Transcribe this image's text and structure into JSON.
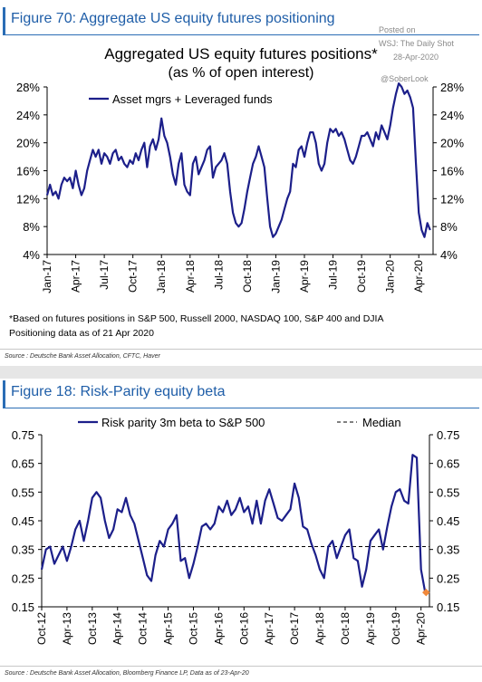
{
  "panel1": {
    "figure_title": "Figure 70: Aggregate US equity futures positioning",
    "watermark": [
      "Posted on",
      "WSJ: The Daily Shot",
      "28-Apr-2020",
      "@SoberLook"
    ],
    "footnote_lines": [
      "*Based on futures positions in S&P 500, Russell 2000, NASDAQ 100, S&P 400 and DJIA",
      "Positioning data as of 21 Apr 2020"
    ],
    "source": "Source : Deutsche Bank Asset Allocation, CFTC, Haver"
  },
  "panel2": {
    "figure_title": "Figure 18: Risk-Parity equity beta",
    "source": "Source : Deutsche Bank Asset Allocation, Bloomberg Finance LP, Data as of 23-Apr-20"
  },
  "colors": {
    "series": "#1c1f8a",
    "median": "#000000",
    "marker": "#f0883a",
    "header": "#1f5ea8"
  },
  "chart_data": [
    {
      "type": "line",
      "title": "Aggregated US equity futures positions*",
      "subtitle": "(as % of open interest)",
      "xlabel": "",
      "ylabel": "",
      "ylim": [
        4,
        28
      ],
      "yticks": [
        4,
        8,
        12,
        16,
        20,
        24,
        28
      ],
      "ytick_labels": [
        "4%",
        "8%",
        "12%",
        "16%",
        "20%",
        "24%",
        "28%"
      ],
      "xlim": [
        0,
        40.5
      ],
      "xticks": [
        0,
        3,
        6,
        9,
        12,
        15,
        18,
        21,
        24,
        27,
        30,
        33,
        36,
        39
      ],
      "xtick_labels": [
        "Jan-17",
        "Apr-17",
        "Jul-17",
        "Oct-17",
        "Jan-18",
        "Apr-18",
        "Jul-18",
        "Oct-18",
        "Jan-19",
        "Apr-19",
        "Jul-19",
        "Oct-19",
        "Jan-20",
        "Apr-20"
      ],
      "legend": "top-left",
      "grid": false,
      "series": [
        {
          "name": "Asset mgrs + Leveraged funds",
          "x": [
            0,
            0.3,
            0.6,
            0.9,
            1.2,
            1.5,
            1.8,
            2.1,
            2.4,
            2.7,
            3.0,
            3.3,
            3.6,
            3.9,
            4.2,
            4.5,
            4.8,
            5.1,
            5.4,
            5.7,
            6.0,
            6.3,
            6.6,
            6.9,
            7.2,
            7.5,
            7.8,
            8.1,
            8.4,
            8.7,
            9.0,
            9.3,
            9.6,
            9.9,
            10.2,
            10.5,
            10.8,
            11.1,
            11.4,
            11.7,
            12.0,
            12.3,
            12.6,
            12.9,
            13.2,
            13.5,
            13.8,
            14.1,
            14.4,
            14.7,
            15.0,
            15.3,
            15.6,
            15.9,
            16.2,
            16.5,
            16.8,
            17.1,
            17.4,
            17.7,
            18.0,
            18.3,
            18.6,
            18.9,
            19.2,
            19.5,
            19.8,
            20.1,
            20.4,
            20.7,
            21.0,
            21.3,
            21.6,
            21.9,
            22.2,
            22.5,
            22.8,
            23.1,
            23.4,
            23.7,
            24.0,
            24.3,
            24.6,
            24.9,
            25.2,
            25.5,
            25.8,
            26.1,
            26.4,
            26.7,
            27.0,
            27.3,
            27.6,
            27.9,
            28.2,
            28.5,
            28.8,
            29.1,
            29.4,
            29.7,
            30.0,
            30.3,
            30.6,
            30.9,
            31.2,
            31.5,
            31.8,
            32.1,
            32.4,
            32.7,
            33.0,
            33.3,
            33.6,
            33.9,
            34.2,
            34.5,
            34.8,
            35.1,
            35.4,
            35.7,
            36.0,
            36.3,
            36.6,
            36.9,
            37.2,
            37.5,
            37.8,
            38.1,
            38.4,
            38.7,
            39.0,
            39.3,
            39.6,
            39.9,
            40.2
          ],
          "values": [
            12.5,
            14,
            12.5,
            13,
            12,
            14,
            15,
            14.5,
            15,
            13.5,
            16,
            14,
            12.5,
            13.5,
            16,
            17.5,
            19,
            18,
            19,
            17,
            18.5,
            18,
            17,
            18.5,
            19,
            17.5,
            18,
            17,
            16.5,
            17.5,
            17,
            18.5,
            17.5,
            19,
            20,
            16.5,
            19.5,
            20.5,
            19,
            20.5,
            23.5,
            21,
            20,
            18,
            15.5,
            14,
            17,
            18.5,
            14,
            13,
            12.5,
            17,
            18,
            15.5,
            16.5,
            17.5,
            19,
            19.5,
            15,
            16.5,
            17,
            17.5,
            18.5,
            17,
            13,
            10,
            8.5,
            8,
            8.5,
            10.5,
            13,
            15,
            17,
            18,
            19.5,
            18,
            16.5,
            12,
            8,
            6.5,
            7,
            8,
            9,
            10.5,
            12,
            13,
            17,
            16.5,
            19,
            19.5,
            18,
            20,
            21.5,
            21.5,
            20,
            17,
            16,
            17,
            20,
            22,
            21.5,
            22,
            21,
            21.5,
            20.5,
            19,
            17.5,
            17,
            18,
            19.5,
            21,
            21,
            21.5,
            20.5,
            19.5,
            21.5,
            20.5,
            22.5,
            21.5,
            20.5,
            22.5,
            25,
            27,
            28.5,
            28,
            27,
            27.5,
            26.5,
            25,
            17,
            10,
            7.5,
            6.5,
            8.5,
            7.5
          ]
        }
      ]
    },
    {
      "type": "line",
      "title": "",
      "xlabel": "",
      "ylabel": "",
      "ylim": [
        0.15,
        0.75
      ],
      "yticks": [
        0.15,
        0.25,
        0.35,
        0.45,
        0.55,
        0.65,
        0.75
      ],
      "ytick_labels": [
        "0.15",
        "0.25",
        "0.35",
        "0.45",
        "0.55",
        "0.65",
        "0.75"
      ],
      "xlim": [
        0,
        92
      ],
      "xticks": [
        0,
        6,
        12,
        18,
        24,
        30,
        36,
        42,
        48,
        54,
        60,
        66,
        72,
        78,
        84,
        90
      ],
      "xtick_labels": [
        "Oct-12",
        "Apr-13",
        "Oct-13",
        "Apr-14",
        "Oct-14",
        "Apr-15",
        "Oct-15",
        "Apr-16",
        "Oct-16",
        "Apr-17",
        "Oct-17",
        "Apr-18",
        "Oct-18",
        "Apr-19",
        "Oct-19",
        "Apr-20"
      ],
      "legend": "top",
      "grid": false,
      "median": 0.36,
      "last_point": {
        "x": 91.2,
        "y": 0.2
      },
      "series": [
        {
          "name": "Risk parity 3m beta to S&P 500",
          "x": [
            0,
            1,
            2,
            3,
            4,
            5,
            6,
            7,
            8,
            9,
            10,
            11,
            12,
            13,
            14,
            15,
            16,
            17,
            18,
            19,
            20,
            21,
            22,
            23,
            24,
            25,
            26,
            27,
            28,
            29,
            30,
            31,
            32,
            33,
            34,
            35,
            36,
            37,
            38,
            39,
            40,
            41,
            42,
            43,
            44,
            45,
            46,
            47,
            48,
            49,
            50,
            51,
            52,
            53,
            54,
            55,
            56,
            57,
            58,
            59,
            60,
            61,
            62,
            63,
            64,
            65,
            66,
            67,
            68,
            69,
            70,
            71,
            72,
            73,
            74,
            75,
            76,
            77,
            78,
            79,
            80,
            81,
            82,
            83,
            84,
            85,
            86,
            87,
            88,
            89,
            90,
            91
          ],
          "values": [
            0.28,
            0.35,
            0.36,
            0.3,
            0.33,
            0.36,
            0.31,
            0.36,
            0.42,
            0.45,
            0.38,
            0.45,
            0.53,
            0.55,
            0.53,
            0.45,
            0.39,
            0.42,
            0.49,
            0.48,
            0.53,
            0.47,
            0.44,
            0.38,
            0.32,
            0.26,
            0.24,
            0.33,
            0.38,
            0.36,
            0.42,
            0.44,
            0.47,
            0.31,
            0.32,
            0.25,
            0.3,
            0.36,
            0.43,
            0.44,
            0.42,
            0.44,
            0.5,
            0.48,
            0.52,
            0.47,
            0.49,
            0.53,
            0.48,
            0.5,
            0.44,
            0.52,
            0.44,
            0.52,
            0.56,
            0.51,
            0.46,
            0.45,
            0.47,
            0.49,
            0.58,
            0.53,
            0.43,
            0.42,
            0.37,
            0.33,
            0.28,
            0.25,
            0.36,
            0.38,
            0.32,
            0.36,
            0.4,
            0.42,
            0.32,
            0.31,
            0.22,
            0.28,
            0.38,
            0.4,
            0.42,
            0.35,
            0.43,
            0.5,
            0.55,
            0.56,
            0.52,
            0.51,
            0.68,
            0.67,
            0.28,
            0.2
          ]
        }
      ]
    }
  ]
}
